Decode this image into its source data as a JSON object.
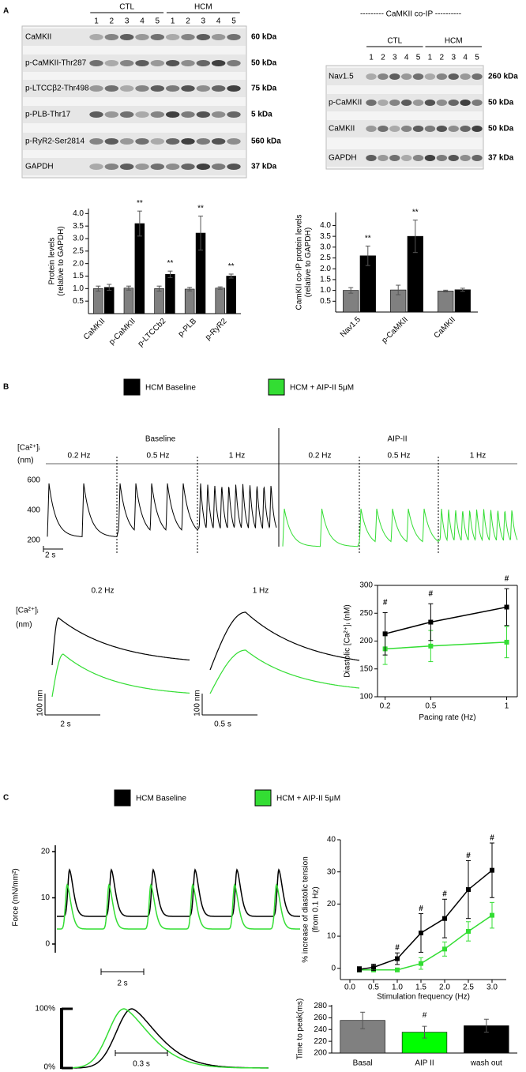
{
  "panels": [
    "A",
    "B",
    "C"
  ],
  "blots": {
    "left": {
      "groups": [
        "CTL",
        "HCM"
      ],
      "lanes": [
        1,
        2,
        3,
        4,
        5,
        1,
        2,
        3,
        4,
        5
      ],
      "rows": [
        {
          "label": "CaMKII",
          "size": "60 kDa"
        },
        {
          "label": "p-CaMKII-Thr287",
          "size": "50 kDa"
        },
        {
          "label": "p-LTCCβ2-Thr498",
          "size": "75 kDa"
        },
        {
          "label": "p-PLB-Thr17",
          "size": "5 kDa"
        },
        {
          "label": "p-RyR2-Ser2814",
          "size": "560 kDa"
        },
        {
          "label": "GAPDH",
          "size": "37 kDa"
        }
      ]
    },
    "right": {
      "title": "--------- CaMKII co-IP ----------",
      "groups": [
        "CTL",
        "HCM"
      ],
      "lanes": [
        1,
        2,
        3,
        4,
        5,
        1,
        2,
        3,
        4,
        5
      ],
      "rows": [
        {
          "label": "Nav1.5",
          "size": "260 kDa"
        },
        {
          "label": "p-CaMKII",
          "size": "50 kDa"
        },
        {
          "label": "CaMKII",
          "size": "50 kDa"
        },
        {
          "label": "GAPDH",
          "size": "37 kDa"
        }
      ]
    }
  },
  "legends": [
    [
      {
        "label": "HCM Baseline",
        "color": "#000000"
      },
      {
        "label": "HCM + AIP-II 5μM",
        "color": "#33dd33"
      }
    ],
    [
      {
        "label": "HCM Baseline",
        "color": "#000000"
      },
      {
        "label": "HCM + AIP-II 5μM",
        "color": "#33dd33"
      }
    ]
  ],
  "ca_traces": {
    "label": "[Ca²⁺]ᵢ",
    "unit": "(nm)",
    "yticks": [
      200,
      400,
      600
    ],
    "time_scale": "2 s",
    "conditions": [
      {
        "title": "Baseline",
        "rates": [
          "0.2 Hz",
          "0.5 Hz",
          "1 Hz"
        ]
      },
      {
        "title": "AIP-II",
        "rates": [
          "0.2 Hz",
          "0.5 Hz",
          "1 Hz"
        ]
      }
    ]
  },
  "ca_zoom": {
    "label": "[Ca²⁺]ᵢ",
    "unit": "(nm)",
    "panels": [
      {
        "title": "0.2 Hz",
        "amp_scale": "100 nm",
        "time_scale": "2 s"
      },
      {
        "title": "1 Hz",
        "amp_scale": "100 nm",
        "time_scale": "0.5 s"
      }
    ]
  },
  "force_traces": {
    "label": "Force (mN/mm²)",
    "yticks": [
      0,
      10,
      20
    ],
    "time_scale": "2 s"
  },
  "normalized_traces": {
    "top": "100%",
    "bottom": "0%",
    "time_scale": "0.3 s"
  },
  "chart_data": [
    {
      "type": "bar",
      "categories": [
        "CaMKII",
        "p-CaMKII",
        "p-LTCCb2",
        "p-PLB",
        "p-RyR2"
      ],
      "series": [
        {
          "color": "#808080",
          "values": [
            1.0,
            1.02,
            1.0,
            0.98,
            1.02
          ],
          "errors": [
            0.1,
            0.08,
            0.1,
            0.07,
            0.05
          ]
        },
        {
          "color": "#000000",
          "values": [
            1.05,
            3.6,
            1.57,
            3.22,
            1.5
          ],
          "errors": [
            0.12,
            0.5,
            0.13,
            0.68,
            0.08
          ]
        }
      ],
      "ylabel": [
        "Protein levels",
        "(relative to GAPDH)"
      ],
      "ylim": [
        0,
        4.2
      ],
      "yticks": [
        0.5,
        {
          "value": 1,
          "label": "1.0"
        },
        1.5,
        {
          "value": 2,
          "label": "2.0"
        },
        2.5,
        {
          "value": 3,
          "label": "3.0"
        },
        3.5,
        {
          "value": 4,
          "label": "4.0"
        }
      ],
      "annotations": [
        null,
        "**",
        "**",
        "**",
        "**"
      ]
    },
    {
      "type": "bar",
      "categories": [
        "Nav1.5",
        "p-CaMKII",
        "CaMKII"
      ],
      "series": [
        {
          "color": "#808080",
          "values": [
            1.0,
            1.02,
            0.97
          ],
          "errors": [
            0.13,
            0.22,
            0.04
          ]
        },
        {
          "color": "#000000",
          "values": [
            2.6,
            3.5,
            1.03
          ],
          "errors": [
            0.45,
            0.75,
            0.07
          ]
        }
      ],
      "ylabel": [
        "CamKII co-IP protein levels",
        "(relative to GAPDH)"
      ],
      "ylim": [
        0,
        4.6
      ],
      "yticks": [
        0.5,
        {
          "value": 1,
          "label": "1.0"
        },
        1.5,
        {
          "value": 2,
          "label": "2.0"
        },
        2.5,
        {
          "value": 3,
          "label": "3.0"
        },
        3.5,
        {
          "value": 4,
          "label": "4.0"
        }
      ],
      "annotations": [
        "**",
        "**",
        null
      ]
    },
    {
      "type": "line",
      "x": [
        0.2,
        0.5,
        1
      ],
      "series": [
        {
          "color": "#000000",
          "values": [
            213,
            234,
            261
          ],
          "errors": [
            38,
            33,
            33
          ]
        },
        {
          "color": "#33dd33",
          "values": [
            186,
            191,
            198
          ],
          "errors": [
            28,
            28,
            28
          ]
        }
      ],
      "xlabel": "Pacing rate (Hz)",
      "ylabel": [
        "Diastolic [Ca²⁺]ᵢ (nM)"
      ],
      "xlim": [
        0.15,
        1.07
      ],
      "xticks": [
        0.2,
        0.5,
        1
      ],
      "ylim": [
        100,
        300
      ],
      "yticks": [
        100,
        150,
        200,
        250,
        300
      ],
      "annotations": [
        "#",
        "#",
        "#"
      ]
    },
    {
      "type": "line",
      "x": [
        0.2,
        0.5,
        1,
        1.5,
        2,
        2.5,
        3
      ],
      "series": [
        {
          "color": "#000000",
          "values": [
            -0.3,
            0.3,
            3,
            11,
            15.5,
            24.5,
            30.5
          ],
          "errors": [
            0.8,
            1,
            1.8,
            6,
            6,
            9,
            8.5
          ]
        },
        {
          "color": "#33dd33",
          "values": [
            -0.5,
            -0.5,
            -0.5,
            1.5,
            6,
            11.5,
            16.5
          ],
          "errors": [
            0.5,
            0.5,
            0.5,
            1.8,
            2.2,
            3,
            4
          ]
        }
      ],
      "xlabel": "Stimulation frequency (Hz)",
      "ylabel": [
        "% increase of diastolic tension",
        "(from 0.1 Hz)"
      ],
      "xlim": [
        -0.2,
        3.3
      ],
      "xticks": [
        {
          "value": 0,
          "label": "0.0"
        },
        0.5,
        {
          "value": 1,
          "label": "1.0"
        },
        1.5,
        {
          "value": 2,
          "label": "2.0"
        },
        2.5,
        {
          "value": 3,
          "label": "3.0"
        }
      ],
      "ylim": [
        -3.5,
        40
      ],
      "yticks": [
        0,
        10,
        20,
        30,
        40
      ],
      "annotations": [
        null,
        null,
        "#",
        "#",
        "#",
        "#",
        "#"
      ]
    },
    {
      "type": "bar",
      "categories": [
        "Basal",
        "AIP II",
        "wash out"
      ],
      "series": [
        {
          "colors": [
            "#808080",
            "#00ff00",
            "#000000"
          ],
          "values": [
            255.5,
            235.5,
            246.5
          ],
          "errors": [
            14,
            10,
            11
          ]
        }
      ],
      "ylabel": [
        "Time to peak(ms)"
      ],
      "ylim": [
        200,
        282
      ],
      "yticks": [
        200,
        220,
        240,
        260,
        280
      ],
      "annotations": [
        null,
        "#",
        null
      ]
    }
  ]
}
